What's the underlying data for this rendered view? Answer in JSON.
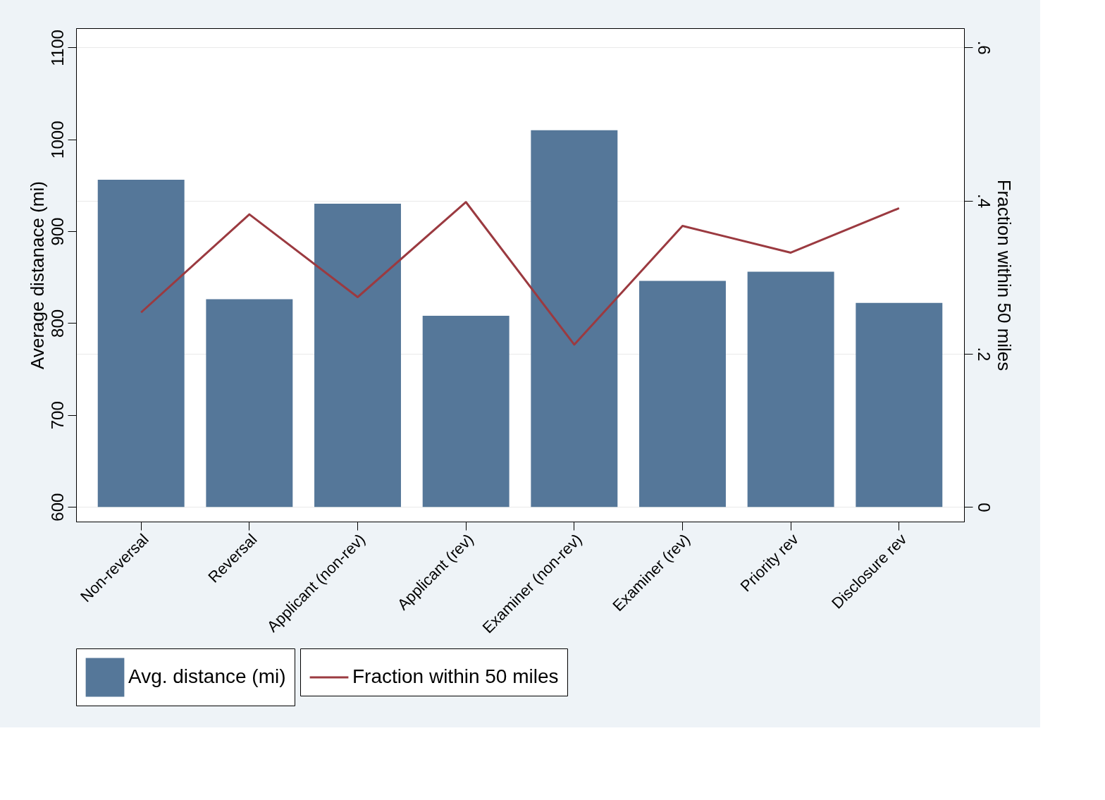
{
  "chart_data": {
    "type": "bar",
    "categories": [
      "Non-reversal",
      "Reversal",
      "Applicant (non-rev)",
      "Applicant (rev)",
      "Examiner (non-rev)",
      "Examiner (rev)",
      "Priority rev",
      "Disclosure rev"
    ],
    "ylabel": "Average distanace (mi)",
    "y2label": "Fraction within 50 miles",
    "ylim": [
      584,
      1121
    ],
    "yticks": [
      600,
      700,
      800,
      900,
      1000,
      1100
    ],
    "y2lim": [
      -0.019,
      0.625
    ],
    "y2ticks": [
      {
        "value": 0,
        "label": "0"
      },
      {
        "value": 0.2,
        "label": ".2"
      },
      {
        "value": 0.4,
        "label": ".4"
      },
      {
        "value": 0.6,
        "label": ".6"
      }
    ],
    "grid": true,
    "legend": "bottom",
    "series": [
      {
        "name": "Avg. distance (mi)",
        "color": "#557799",
        "base": [
          600,
          600,
          600,
          600,
          600,
          600,
          600,
          600
        ],
        "values": [
          356,
          226,
          330,
          208,
          410,
          246,
          256,
          222
        ]
      },
      {
        "name": "Fraction within 50 miles",
        "type": "line",
        "axis": "y2",
        "color": "#9b3a40",
        "values": [
          0.254,
          0.382,
          0.274,
          0.398,
          0.212,
          0.367,
          0.332,
          0.39
        ]
      }
    ]
  }
}
